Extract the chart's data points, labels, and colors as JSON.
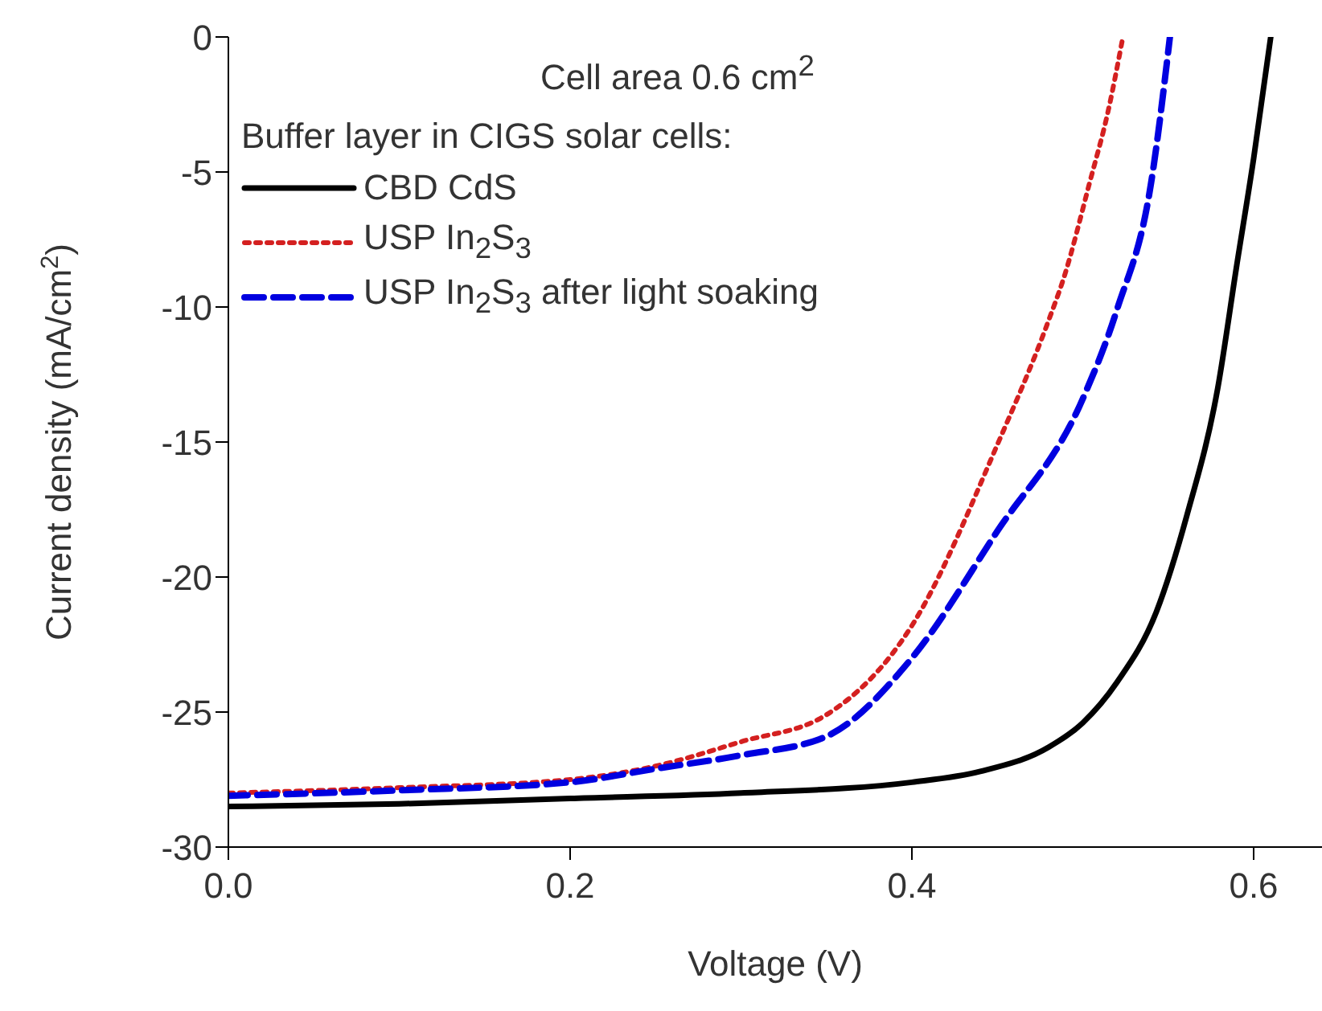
{
  "chart_data": {
    "type": "line",
    "xlabel": "Voltage (V)",
    "ylabel": "Current density (mA/cm$^{2}$)",
    "legend_title": "Buffer layer in CIGS solar cells:",
    "annotations": [
      "Cell area 0.6 cm$^{2}$"
    ],
    "legend": "top left",
    "grid": false,
    "marker": "none",
    "xlim": [
      0,
      0.64
    ],
    "ylim": [
      -30,
      0
    ],
    "xticks": [
      {
        "value": 0,
        "label": "0.0"
      },
      {
        "value": 0.2,
        "label": "0.2"
      },
      {
        "value": 0.4,
        "label": "0.4"
      },
      {
        "value": 0.6,
        "label": "0.6"
      }
    ],
    "yticks": [
      -30,
      -25,
      -20,
      -15,
      -10,
      -5,
      0
    ],
    "series": [
      {
        "name": "CBD CdS",
        "color": "#000000",
        "line_style": "solid",
        "x": [
          0,
          0.1,
          0.2,
          0.3,
          0.4,
          0.44,
          0.48,
          0.5,
          0.52,
          0.543,
          0.561,
          0.579,
          0.59,
          0.6,
          0.61
        ],
        "values": [
          -28.5,
          -28.4,
          -28.2,
          -28,
          -27.6,
          -27.2,
          -26.3,
          -25.4,
          -23.9,
          -21.3,
          -17.7,
          -13,
          -8.5,
          -4.5,
          0
        ]
      },
      {
        "name": "USP In$_{2}$S$_{3}$",
        "color": "#d42020",
        "line_style": "dotted",
        "x": [
          0,
          0.1,
          0.2,
          0.25,
          0.3,
          0.35,
          0.4,
          0.45,
          0.48,
          0.489,
          0.504,
          0.515,
          0.5235
        ],
        "values": [
          -28,
          -27.8,
          -27.5,
          -27,
          -26.1,
          -25.1,
          -21.8,
          -15.1,
          -10.5,
          -8.9,
          -5.4,
          -2.7,
          0
        ]
      },
      {
        "name": "USP In$_{2}$S$_{3}$ after light soaking",
        "color": "#0000e0",
        "line_style": "dashed",
        "x": [
          0,
          0.1,
          0.2,
          0.25,
          0.3,
          0.35,
          0.4,
          0.45,
          0.5,
          0.52,
          0.54,
          0.551
        ],
        "values": [
          -28.1,
          -27.9,
          -27.6,
          -27.1,
          -26.6,
          -25.9,
          -23,
          -18.3,
          -13.4,
          -10.1,
          -5.4,
          0
        ]
      }
    ]
  }
}
